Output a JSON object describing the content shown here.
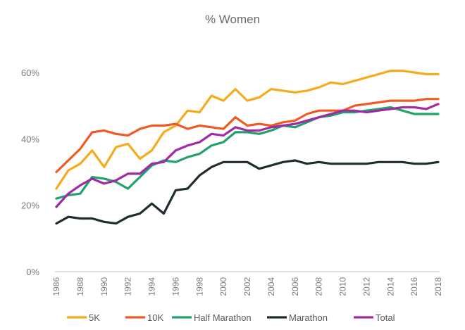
{
  "chart_data": {
    "type": "line",
    "title": "% Women",
    "xlabel": "",
    "ylabel": "",
    "ylim": [
      0,
      60
    ],
    "yticks": [
      0,
      20,
      40,
      60
    ],
    "ytick_labels": [
      "0%",
      "20%",
      "40%",
      "60%"
    ],
    "xlim": [
      1986,
      2018
    ],
    "xticks": [
      "1986",
      "1988",
      "1990",
      "1992",
      "1994",
      "1996",
      "1998",
      "2000",
      "2002",
      "2004",
      "2006",
      "2008",
      "2010",
      "2012",
      "2014",
      "2016",
      "2018"
    ],
    "grid": false,
    "legend": "bottom",
    "x": [
      1986,
      1987,
      1988,
      1989,
      1990,
      1991,
      1992,
      1993,
      1994,
      1995,
      1996,
      1997,
      1998,
      1999,
      2000,
      2001,
      2002,
      2003,
      2004,
      2005,
      2006,
      2007,
      2008,
      2009,
      2010,
      2011,
      2012,
      2013,
      2014,
      2015,
      2016,
      2017,
      2018
    ],
    "series": [
      {
        "name": "5K",
        "color": "#f5ab1c",
        "values": [
          25,
          30.5,
          32.5,
          36.5,
          31.5,
          37.5,
          38.5,
          34,
          36.5,
          42,
          44,
          48.5,
          48,
          53,
          51.5,
          55,
          51.5,
          52.5,
          55,
          54.5,
          54,
          54.5,
          55.5,
          57,
          56.5,
          57.5,
          58.5,
          59.5,
          60.5,
          60.5,
          60,
          59.5,
          59.5
        ]
      },
      {
        "name": "10K",
        "color": "#f05a22",
        "values": [
          30,
          33.5,
          37,
          42,
          42.5,
          41.5,
          41,
          43,
          44,
          44,
          44.5,
          43,
          44,
          43.5,
          43,
          46.5,
          44,
          44.5,
          44,
          45,
          45.5,
          47.5,
          48.5,
          48.5,
          48.5,
          50,
          50.5,
          51,
          51.5,
          51.5,
          51.5,
          52,
          52
        ]
      },
      {
        "name": "Half Marathon",
        "color": "#1fa36a",
        "values": [
          22,
          23,
          23.5,
          28.5,
          28,
          27,
          25,
          28.5,
          32,
          33.5,
          33,
          34.5,
          35.5,
          38,
          39,
          42,
          42,
          41.5,
          42.5,
          44,
          43.5,
          45,
          46.5,
          47,
          48,
          48,
          48.5,
          49,
          49.5,
          48.5,
          47.5,
          47.5,
          47.5
        ]
      },
      {
        "name": "Marathon",
        "color": "#1f2d30",
        "values": [
          14.5,
          16.5,
          16,
          16,
          15,
          14.5,
          16.5,
          17.5,
          20.5,
          17.5,
          24.5,
          25,
          29,
          31.5,
          33,
          33,
          33,
          31,
          32,
          33,
          33.5,
          32.5,
          33,
          32.5,
          32.5,
          32.5,
          32.5,
          33,
          33,
          33,
          32.5,
          32.5,
          33
        ]
      },
      {
        "name": "Total",
        "color": "#a12aa6",
        "values": [
          19.5,
          23.5,
          26,
          28,
          26.5,
          27.5,
          29.5,
          29.5,
          32.5,
          33,
          36.5,
          38,
          39,
          41.5,
          41,
          43.5,
          42.5,
          42.5,
          43.5,
          44,
          44.5,
          45.5,
          46.5,
          47.5,
          48.5,
          48.5,
          48,
          48.5,
          49,
          49.5,
          49.5,
          49,
          50.5
        ]
      }
    ]
  }
}
